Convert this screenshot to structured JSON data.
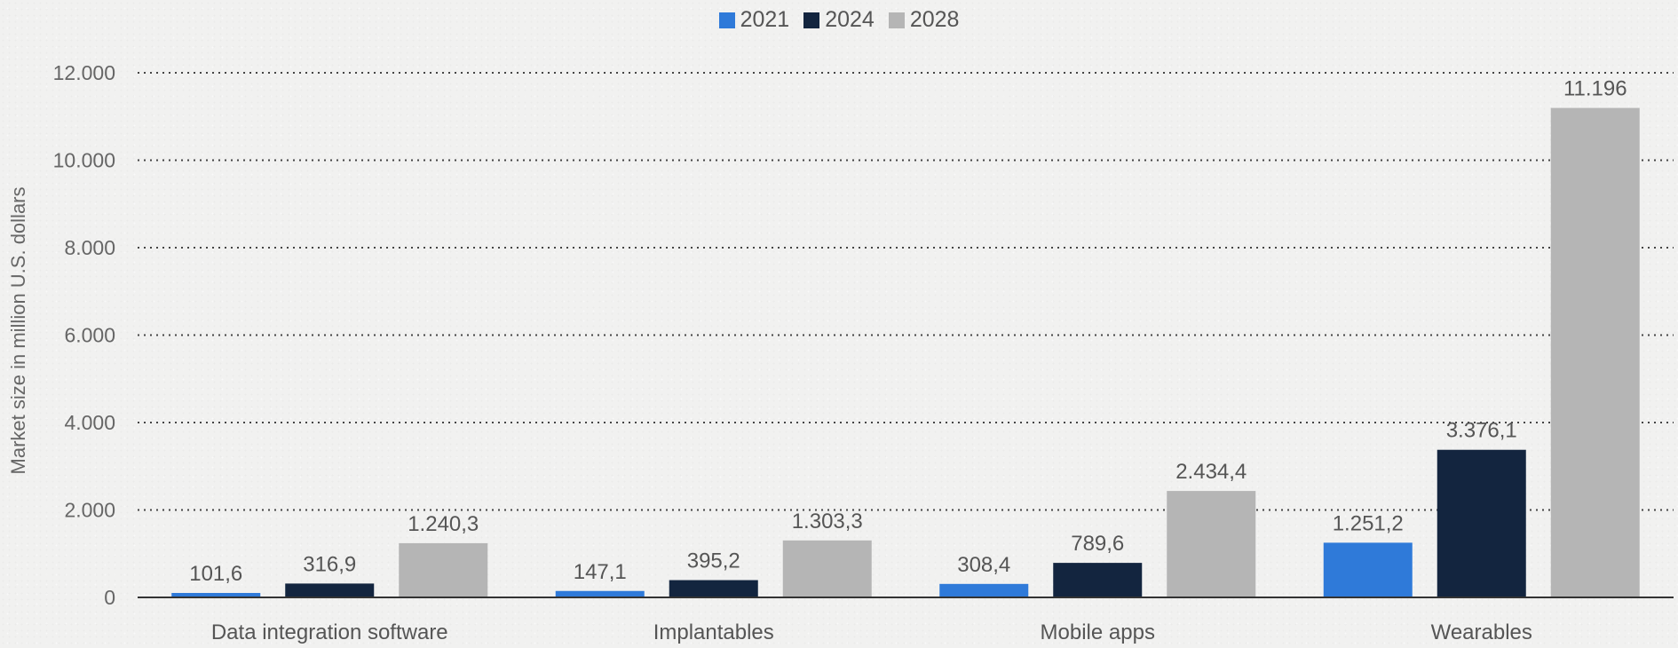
{
  "chart_data": {
    "type": "bar",
    "title": "",
    "xlabel": "",
    "ylabel": "Market size in million U.S. dollars",
    "ylim": [
      0,
      12000
    ],
    "yticks": [
      0,
      2000,
      4000,
      6000,
      8000,
      10000,
      12000
    ],
    "ytick_labels": [
      "0",
      "2.000",
      "4.000",
      "6.000",
      "8.000",
      "10.000",
      "12.000"
    ],
    "grid": true,
    "legend_position": "top-center",
    "categories": [
      "Data integration software",
      "Implantables",
      "Mobile apps",
      "Wearables"
    ],
    "series": [
      {
        "name": "2021",
        "color": "#2f7ad9",
        "values": [
          101.6,
          147.1,
          308.4,
          1251.2
        ],
        "labels": [
          "101,6",
          "147,1",
          "308,4",
          "1.251,2"
        ]
      },
      {
        "name": "2024",
        "color": "#13253f",
        "values": [
          316.9,
          395.2,
          789.6,
          3376.1
        ],
        "labels": [
          "316,9",
          "395,2",
          "789,6",
          "3.376,1"
        ]
      },
      {
        "name": "2028",
        "color": "#b5b5b5",
        "values": [
          1240.3,
          1303.3,
          2434.4,
          11196
        ],
        "labels": [
          "1.240,3",
          "1.303,3",
          "2.434,4",
          "11.196"
        ]
      }
    ]
  }
}
